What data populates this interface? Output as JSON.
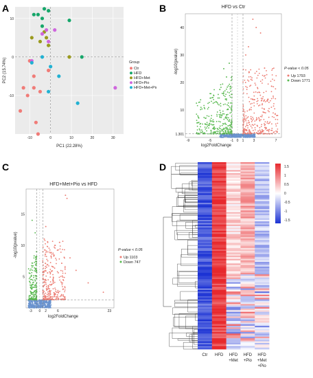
{
  "panels": {
    "A": {
      "letter": "A"
    },
    "B": {
      "letter": "B"
    },
    "C": {
      "letter": "C"
    },
    "D": {
      "letter": "D"
    }
  },
  "colors": {
    "Ctr": "#f07c78",
    "HFD": "#16a66a",
    "HFD+Met": "#9a9a1e",
    "HFD+Pio": "#cf67dd",
    "HFD+Met+Pio": "#21b1d2",
    "up": "#ec7c72",
    "down": "#58b94f",
    "ns": "#6a93cf",
    "heat_high": "#e7292d",
    "heat_mid": "#ffffff",
    "heat_low": "#1c33d4"
  },
  "chart_data": [
    {
      "panel": "A",
      "type": "scatter",
      "title": "",
      "xlabel": "PC1 (22.28%)",
      "ylabel": "PC2 (15.74%)",
      "xlim": [
        -17,
        35
      ],
      "ylim": [
        -20,
        13
      ],
      "xticks": [
        -10,
        0,
        10,
        20,
        30
      ],
      "yticks": [
        -10,
        0,
        10
      ],
      "legend_title": "Group",
      "legend_position": "right",
      "series": [
        {
          "name": "Ctr",
          "points": [
            [
              -14.5,
              -14
            ],
            [
              -13,
              -8
            ],
            [
              -11,
              -10
            ],
            [
              -8,
              -5
            ],
            [
              -8,
              -8
            ],
            [
              -7,
              -17
            ],
            [
              -5,
              -9
            ],
            [
              -6,
              -20
            ],
            [
              -1,
              -3.5
            ],
            [
              -10,
              -1
            ]
          ]
        },
        {
          "name": "HFD",
          "points": [
            [
              -8,
              11
            ],
            [
              -6,
              11
            ],
            [
              -4,
              10
            ],
            [
              -3,
              12.5
            ],
            [
              -1,
              12
            ],
            [
              -4,
              8
            ],
            [
              9,
              9.5
            ],
            [
              15,
              0
            ]
          ]
        },
        {
          "name": "HFD+Met",
          "points": [
            [
              -9,
              5
            ],
            [
              -5,
              4
            ],
            [
              -3,
              6.5
            ],
            [
              -2,
              5
            ],
            [
              -1,
              3
            ],
            [
              9,
              0
            ]
          ]
        },
        {
          "name": "HFD+Pio",
          "points": [
            [
              -9,
              -1
            ],
            [
              -4,
              6
            ],
            [
              -2,
              7
            ],
            [
              -1,
              4
            ],
            [
              2,
              7
            ],
            [
              31,
              -8
            ]
          ]
        },
        {
          "name": "HFD+Met+Pio",
          "points": [
            [
              -9,
              -1.5
            ],
            [
              -4,
              0
            ],
            [
              0,
              -2.5
            ],
            [
              4,
              -5
            ],
            [
              -1,
              -9
            ],
            [
              13,
              -12
            ]
          ]
        }
      ]
    },
    {
      "panel": "B",
      "type": "scatter",
      "title": "HFD vs Ctr",
      "xlabel": "log2FoldChange",
      "ylabel": "-log10(pvalue)",
      "xlim": [
        -9.5,
        8
      ],
      "ylim": [
        0,
        45
      ],
      "xticks": [
        -9,
        -5,
        -1,
        0,
        1,
        3,
        7
      ],
      "yticks": [
        10,
        20,
        30,
        40
      ],
      "extra_ytick": "1.301",
      "threshold_y": 1.301,
      "threshold_x": [
        -1,
        1
      ],
      "legend_title": "P-value < 0.05",
      "legend_position": "right",
      "series": [
        {
          "name": "Up 1793",
          "category": "up",
          "count": 1793
        },
        {
          "name": "Down 1771",
          "category": "down",
          "count": 1771
        }
      ]
    },
    {
      "panel": "C",
      "type": "scatter",
      "title": "HFD+Met+Pio vs HFD",
      "xlabel": "log2FoldChange",
      "ylabel": "-log10(pvalue)",
      "xlim": [
        -4.5,
        24.5
      ],
      "ylim": [
        0,
        19
      ],
      "xticks": [
        -3,
        0,
        2,
        6,
        23
      ],
      "yticks": [
        5,
        10,
        15
      ],
      "threshold_y": 1.301,
      "threshold_x": [
        -1,
        1
      ],
      "legend_title": "P-value < 0.05",
      "legend_position": "right",
      "series": [
        {
          "name": "Up 1103",
          "category": "up",
          "count": 1103
        },
        {
          "name": "Down 747",
          "category": "down",
          "count": 747
        }
      ]
    },
    {
      "panel": "D",
      "type": "heatmap",
      "columns": [
        "Ctr",
        "HFD",
        "HFD\n+Met",
        "HFD\n+Pio",
        "HFD\n+Met\n+Pio"
      ],
      "colorbar_ticks": [
        "1.5",
        "1",
        "0.5",
        "0",
        "-0.5",
        "-1",
        "-1.5"
      ],
      "colorbar_range": [
        -1.5,
        1.5
      ],
      "column_profile": [
        -1.2,
        1.35,
        0.25,
        0.55,
        -0.45
      ]
    }
  ]
}
